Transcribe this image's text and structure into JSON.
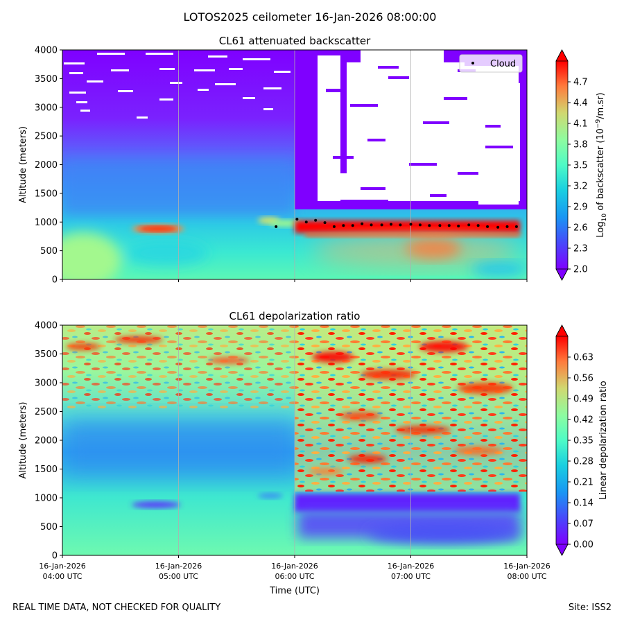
{
  "figure_title": "LOTOS2025 ceilometer 16-Jan-2026 08:00:00",
  "footer_left": "REAL TIME DATA, NOT CHECKED FOR QUALITY",
  "footer_right": "Site: ISS2",
  "colors": {
    "cloud_marker": "#000000",
    "saturated_high": "#ff0000",
    "rainbow_low": "#7f00ff",
    "grid": "#b0b0b0"
  },
  "chart_data": [
    {
      "type": "heatmap",
      "title": "CL61 attenuated backscatter",
      "xlabel": "",
      "ylabel": "Altitude (meters)",
      "ylim": [
        0,
        4000
      ],
      "yticks": [
        "0",
        "500",
        "1000",
        "1500",
        "2000",
        "2500",
        "3000",
        "3500",
        "4000"
      ],
      "xlim_hours": [
        4,
        8
      ],
      "colormap": "rainbow",
      "colorbar": {
        "label_pre": "Log",
        "label_sub": "10",
        "label_mid": " of backscatter (10",
        "label_sup": "−9",
        "label_post": "/m.sr)",
        "range": [
          2.0,
          5.0
        ],
        "ticks": [
          "2.0",
          "2.3",
          "2.6",
          "2.9",
          "3.2",
          "3.5",
          "3.8",
          "4.1",
          "4.4",
          "4.7"
        ]
      },
      "legend": {
        "label": "Cloud",
        "placement": "top-right"
      },
      "cloud_base": {
        "hours": [
          5.84,
          6.02,
          6.1,
          6.18,
          6.26,
          6.34,
          6.42,
          6.5,
          6.58,
          6.66,
          6.75,
          6.83,
          6.91,
          7.0,
          7.08,
          7.16,
          7.25,
          7.33,
          7.41,
          7.5,
          7.58,
          7.66,
          7.75,
          7.83,
          7.91
        ],
        "altitude_m": [
          920,
          1050,
          1000,
          1030,
          990,
          920,
          940,
          940,
          970,
          950,
          950,
          960,
          950,
          960,
          950,
          940,
          940,
          940,
          930,
          950,
          940,
          920,
          910,
          920,
          920
        ]
      }
    },
    {
      "type": "heatmap",
      "title": "CL61 depolarization ratio",
      "xlabel": "Time (UTC)",
      "ylabel": "Altitude (meters)",
      "ylim": [
        0,
        4000
      ],
      "yticks": [
        "0",
        "500",
        "1000",
        "1500",
        "2000",
        "2500",
        "3000",
        "3500",
        "4000"
      ],
      "xlim_hours": [
        4,
        8
      ],
      "xticks": [
        {
          "date": "16-Jan-2026",
          "time": "04:00 UTC"
        },
        {
          "date": "16-Jan-2026",
          "time": "05:00 UTC"
        },
        {
          "date": "16-Jan-2026",
          "time": "06:00 UTC"
        },
        {
          "date": "16-Jan-2026",
          "time": "07:00 UTC"
        },
        {
          "date": "16-Jan-2026",
          "time": "08:00 UTC"
        }
      ],
      "colormap": "rainbow",
      "colorbar": {
        "label": "Linear depolarization ratio",
        "range": [
          0.0,
          0.7
        ],
        "ticks": [
          "0.00",
          "0.07",
          "0.14",
          "0.21",
          "0.28",
          "0.35",
          "0.42",
          "0.49",
          "0.56",
          "0.63"
        ]
      }
    }
  ]
}
